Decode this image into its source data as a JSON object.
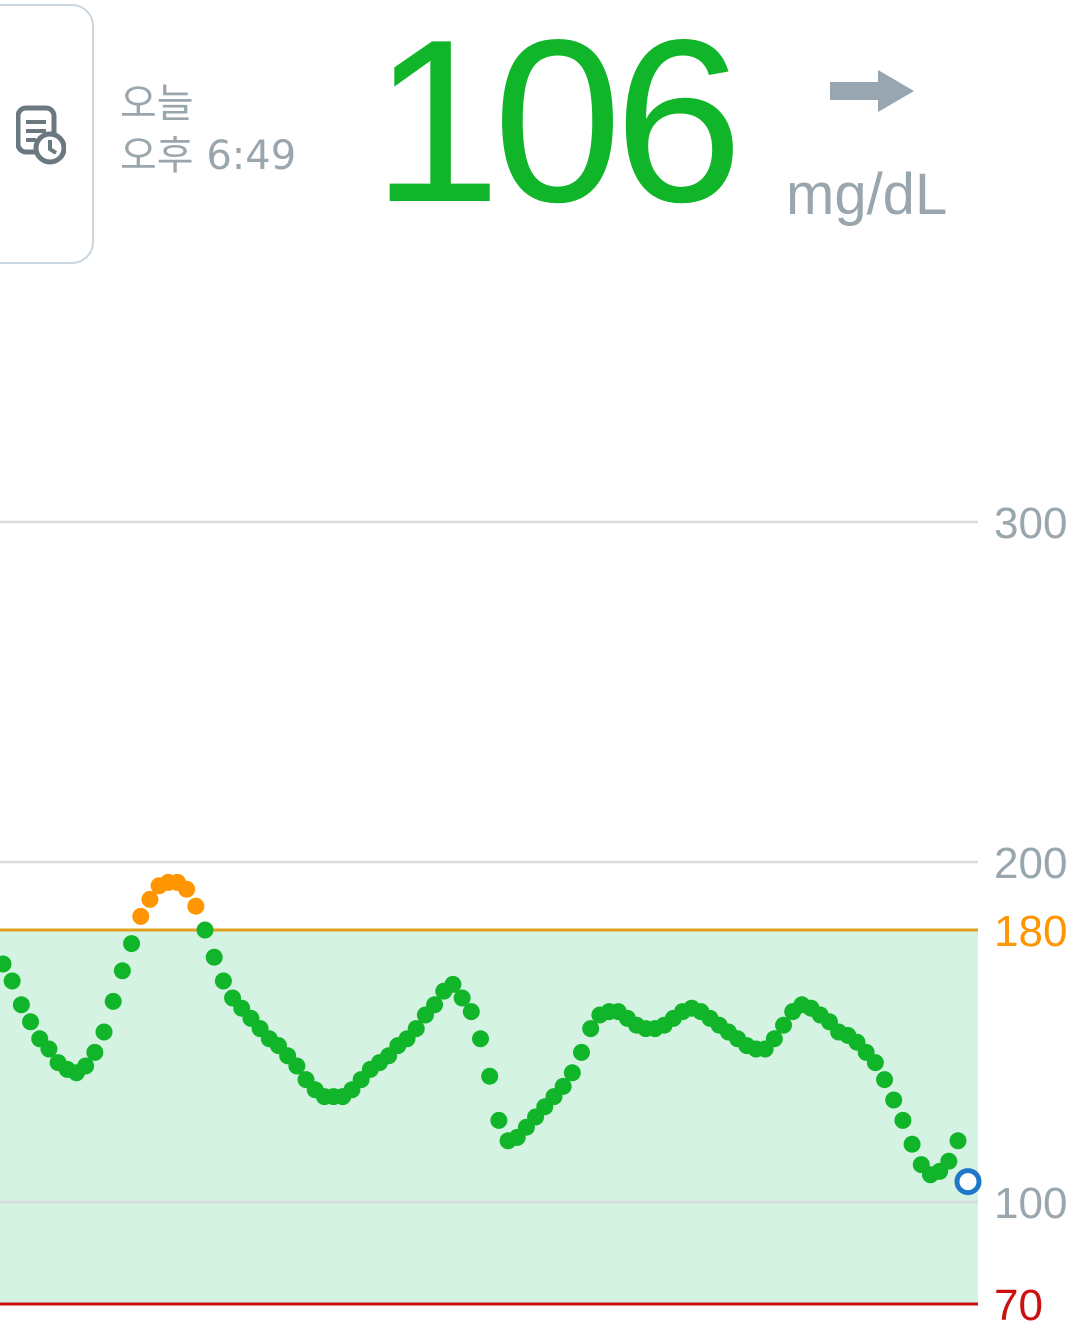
{
  "header": {
    "day_label": "오늘",
    "time_label": "오후 6:49",
    "reading_value": "106",
    "unit": "mg/dL",
    "history_button_icon": "logbook-clock-icon",
    "trend_icon": "arrow-right-icon",
    "trend_direction": "steady"
  },
  "colors": {
    "in_range": "#11b52a",
    "high": "#ff9500",
    "high_line": "#e0a020",
    "low_line": "#cc1010",
    "target_band": "#d5f3e2",
    "grid": "#d8dcdf",
    "label_gray": "#9aa6ae",
    "current_point": "#1f77c8"
  },
  "chart_data": {
    "type": "scatter",
    "title": "",
    "xlabel": "",
    "ylabel": "",
    "ylim": [
      70,
      300
    ],
    "y_ticks": [
      {
        "value": 300,
        "label": "300",
        "color": "#9aa6ae",
        "line": "grid"
      },
      {
        "value": 200,
        "label": "200",
        "color": "#9aa6ae",
        "line": "grid"
      },
      {
        "value": 180,
        "label": "180",
        "color": "#ff9500",
        "line": "high"
      },
      {
        "value": 100,
        "label": "100",
        "color": "#9aa6ae",
        "line": "grid"
      },
      {
        "value": 70,
        "label": "70",
        "color": "#cc1010",
        "line": "low"
      }
    ],
    "target_range": [
      70,
      180
    ],
    "high_threshold": 180,
    "low_threshold": 70,
    "grid": true,
    "series": [
      {
        "values": [
          170,
          165,
          158,
          153,
          148,
          145,
          141,
          139,
          138,
          140,
          144,
          150,
          159,
          168,
          176,
          184,
          189,
          193,
          194,
          194,
          192,
          187,
          180,
          172,
          165,
          160,
          157,
          154,
          151,
          148,
          146,
          143,
          140,
          136,
          133,
          131,
          131,
          131,
          133,
          136,
          139,
          141,
          143,
          146,
          148,
          151,
          155,
          158,
          162,
          164,
          160,
          156,
          148,
          137,
          124,
          118,
          119,
          122,
          125,
          128,
          131,
          134,
          138,
          144,
          151,
          155,
          156,
          156,
          154,
          152,
          151,
          151,
          152,
          154,
          156,
          157,
          156,
          154,
          152,
          150,
          148,
          146,
          145,
          145,
          148,
          152,
          156,
          158,
          157,
          155,
          153,
          150,
          149,
          147,
          144,
          141,
          136,
          130,
          124,
          117,
          111,
          108,
          109,
          112,
          118
        ]
      }
    ],
    "current_point": {
      "value": 106
    }
  }
}
